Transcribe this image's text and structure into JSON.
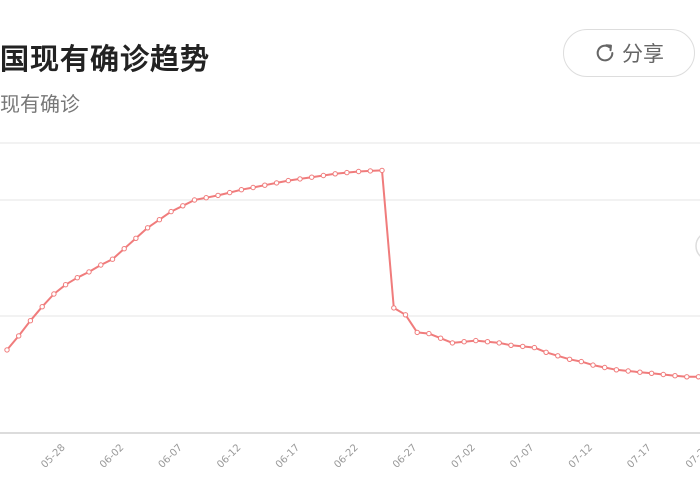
{
  "header": {
    "title": "国现有确诊趋势",
    "subtitle": "现有确诊",
    "share_label": "分享"
  },
  "colors": {
    "line": "#f07c7c",
    "grid": "#e6e6e6",
    "axis": "#c8c8c8",
    "tick_text": "#999999"
  },
  "chart_data": {
    "type": "line",
    "title": "国现有确诊趋势",
    "subtitle": "现有确诊",
    "x_start": "05-23",
    "x_tick_labels": [
      "05-28",
      "06-02",
      "06-07",
      "06-12",
      "06-17",
      "06-22",
      "06-27",
      "07-02",
      "07-07",
      "07-12",
      "07-17",
      "07-22"
    ],
    "y_ticks": [
      0,
      1,
      2,
      3
    ],
    "ylim": [
      0,
      3
    ],
    "series": [
      {
        "values": [
          0.71,
          0.83,
          0.96,
          1.08,
          1.19,
          1.27,
          1.33,
          1.38,
          1.44,
          1.49,
          1.58,
          1.67,
          1.76,
          1.83,
          1.9,
          1.95,
          2.0,
          2.04,
          2.08,
          2.13,
          2.18,
          2.22,
          2.26,
          2.3,
          2.34,
          2.37,
          2.4,
          2.43,
          2.46,
          2.48,
          2.5,
          2.51,
          2.52,
          1.07,
          1.01,
          0.86,
          0.85,
          0.81,
          0.77,
          0.78,
          0.79,
          0.78,
          0.77,
          0.75,
          0.74,
          0.73,
          0.69,
          0.66,
          0.63,
          0.61,
          0.58,
          0.56,
          0.54,
          0.53,
          0.52,
          0.51,
          0.5,
          0.49,
          0.48,
          0.48,
          0.47,
          0.46,
          0.46,
          0.45,
          0.45,
          0.45,
          0.45
        ]
      }
    ],
    "grid": true,
    "legend": "none"
  }
}
